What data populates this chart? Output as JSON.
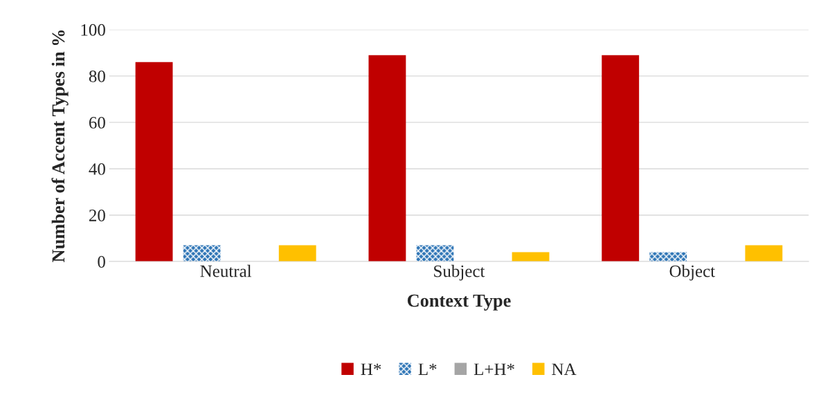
{
  "chart_data": {
    "type": "bar",
    "xlabel": "Context Type",
    "ylabel": "Number of Accent Types in %",
    "categories": [
      "Neutral",
      "Subject",
      "Object"
    ],
    "series": [
      {
        "name": "H*",
        "color": "#c00000",
        "values": [
          86,
          89,
          89
        ]
      },
      {
        "name": "L*",
        "color": "#2e75b6",
        "values": [
          7,
          7,
          4
        ]
      },
      {
        "name": "L+H*",
        "color": "#a5a5a5",
        "values": [
          0,
          0,
          0
        ]
      },
      {
        "name": "NA",
        "color": "#ffc000",
        "values": [
          7,
          4,
          7
        ]
      }
    ],
    "ylim": [
      0,
      100
    ],
    "yticks": [
      0,
      20,
      40,
      60,
      80,
      100
    ],
    "grid": "y",
    "legend": "bottom"
  }
}
